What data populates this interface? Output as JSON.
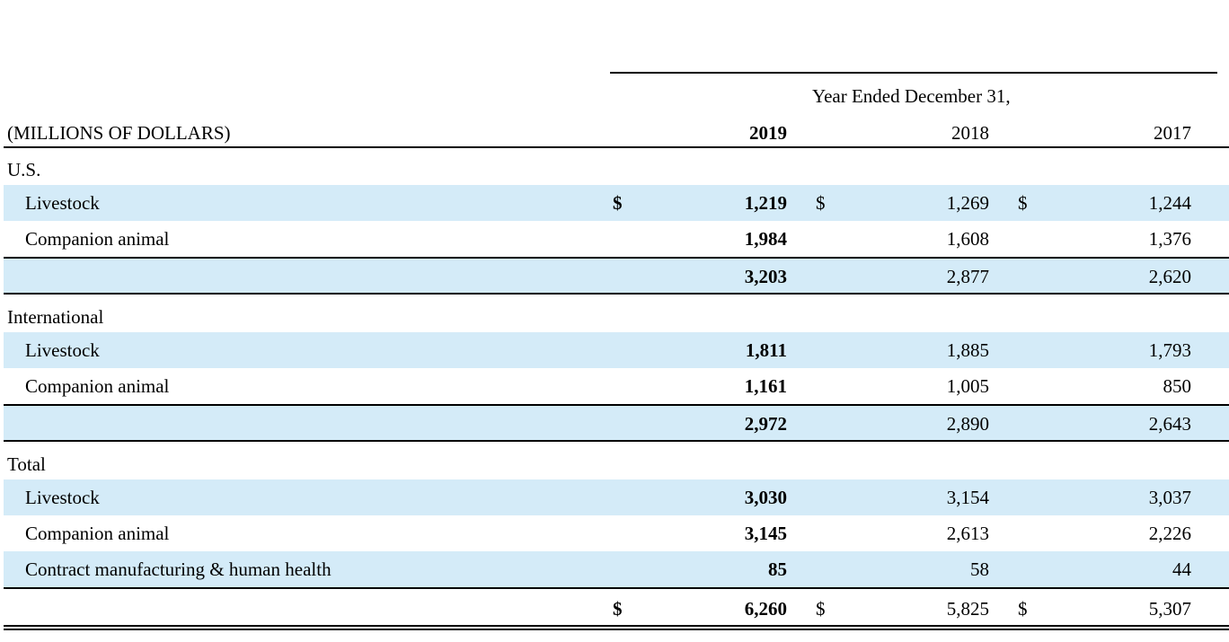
{
  "header": {
    "period_label": "Year Ended December 31,",
    "units_label": "(MILLIONS OF DOLLARS)",
    "years": [
      "2019",
      "2018",
      "2017"
    ]
  },
  "sections": [
    {
      "title": "U.S.",
      "rows": [
        {
          "label": "Livestock",
          "values": [
            "1,219",
            "1,269",
            "1,244"
          ],
          "dollar": true
        },
        {
          "label": "Companion animal",
          "values": [
            "1,984",
            "1,608",
            "1,376"
          ],
          "dollar": false
        }
      ],
      "subtotal": [
        "3,203",
        "2,877",
        "2,620"
      ]
    },
    {
      "title": "International",
      "rows": [
        {
          "label": "Livestock",
          "values": [
            "1,811",
            "1,885",
            "1,793"
          ],
          "dollar": false
        },
        {
          "label": "Companion animal",
          "values": [
            "1,161",
            "1,005",
            "850"
          ],
          "dollar": false
        }
      ],
      "subtotal": [
        "2,972",
        "2,890",
        "2,643"
      ]
    },
    {
      "title": "Total",
      "rows": [
        {
          "label": "Livestock",
          "values": [
            "3,030",
            "3,154",
            "3,037"
          ],
          "dollar": false
        },
        {
          "label": "Companion animal",
          "values": [
            "3,145",
            "2,613",
            "2,226"
          ],
          "dollar": false
        },
        {
          "label": "Contract manufacturing & human health",
          "values": [
            "85",
            "58",
            "44"
          ],
          "dollar": false
        }
      ],
      "total": [
        "6,260",
        "5,825",
        "5,307"
      ]
    }
  ],
  "currency_symbol": "$",
  "colors": {
    "row_shade": "#d4ebf8",
    "rule": "#000000"
  }
}
